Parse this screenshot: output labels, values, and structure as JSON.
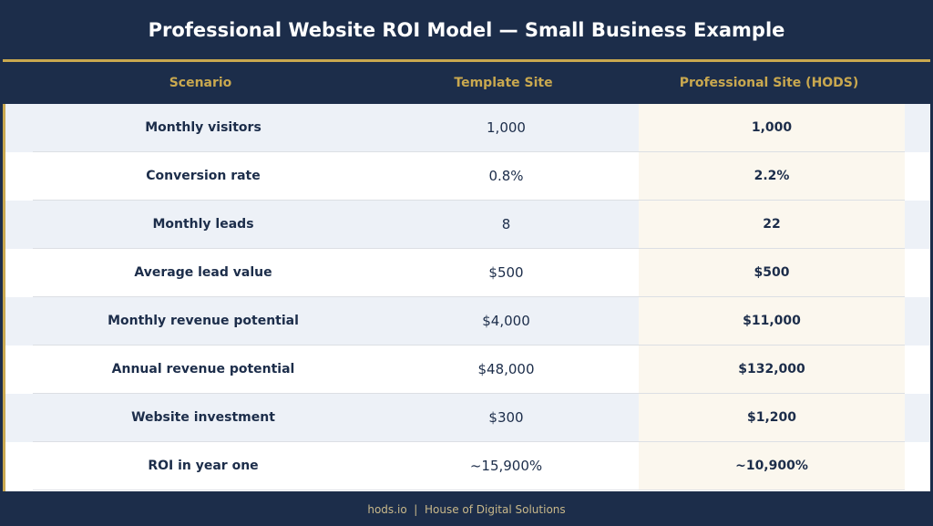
{
  "title": "Professional Website ROI Model — Small Business Example",
  "columns": [
    "Scenario",
    "Template Site",
    "Professional Site (HODS)"
  ],
  "rows": [
    [
      "Monthly visitors",
      "1,000",
      "1,000"
    ],
    [
      "Conversion rate",
      "0.8%",
      "2.2%"
    ],
    [
      "Monthly leads",
      "8",
      "22"
    ],
    [
      "Average lead value",
      "$500",
      "$500"
    ],
    [
      "Monthly revenue potential",
      "$4,000",
      "$11,000"
    ],
    [
      "Annual revenue potential",
      "$48,000",
      "$132,000"
    ],
    [
      "Website investment",
      "$300",
      "$1,200"
    ],
    [
      "ROI in year one",
      "~15,900%",
      "~10,900%"
    ]
  ],
  "footer": "hods.io  |  House of Digital Solutions",
  "colors": {
    "navy": "#1c2d4a",
    "gold": "#c9a84f",
    "highlight": "#fbf7ee",
    "stripe": "#edf1f7"
  }
}
